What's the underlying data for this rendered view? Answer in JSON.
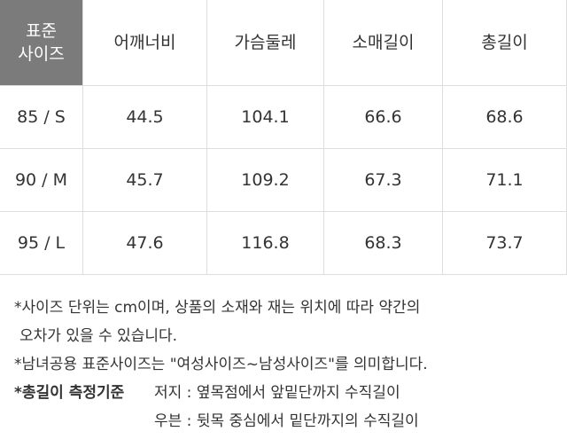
{
  "table": {
    "header": [
      [
        "표준",
        "사이즈"
      ],
      "어깨너비",
      "가슴둘레",
      "소매길이",
      "총길이"
    ],
    "rows": [
      [
        "85 / S",
        "44.5",
        "104.1",
        "66.6",
        "68.6"
      ],
      [
        "90 / M",
        "45.7",
        "109.2",
        "67.3",
        "71.1"
      ],
      [
        "95 / L",
        "47.6",
        "116.8",
        "68.3",
        "73.7"
      ]
    ]
  },
  "notes": {
    "unit": [
      "*사이즈 단위는 cm이며, 상품의 소재와 재는 위치에 따라 약간의",
      "오차가 있을 수 있습니다."
    ],
    "unisex": "*남녀공용 표준사이즈는 \"여성사이즈~남성사이즈\"를 의미합니다.",
    "length": {
      "label": "*총길이 측정기준",
      "lines": [
        "저지 : 옆목점에서 앞밑단까지 수직길이",
        "우븐 : 뒷목 중심에서 밑단까지의 수직길이"
      ]
    }
  }
}
